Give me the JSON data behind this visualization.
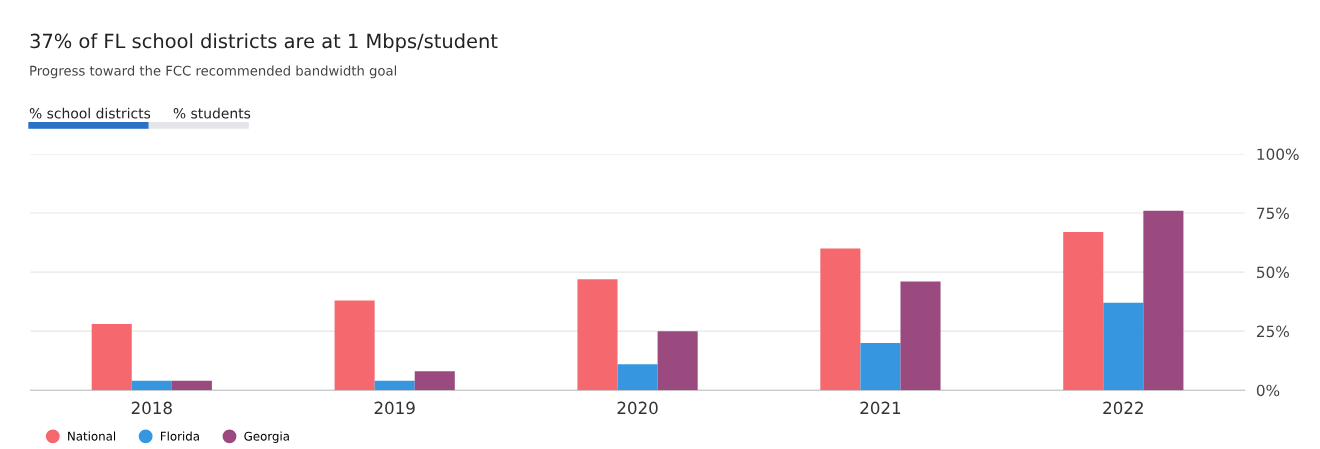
{
  "chart_data": {
    "type": "bar",
    "title": "37% of FL school districts are at 1 Mbps/student",
    "subtitle": "Progress toward the FCC recommended bandwidth goal",
    "annotations": [
      "% school districts",
      "% students"
    ],
    "categories": [
      "2018",
      "2019",
      "2020",
      "2021",
      "2022"
    ],
    "series": [
      {
        "name": "National",
        "color": "#f4686e",
        "values": [
          28,
          38,
          47,
          60,
          67
        ]
      },
      {
        "name": "Florida",
        "color": "#3697e0",
        "values": [
          4,
          4,
          11,
          20,
          37
        ]
      },
      {
        "name": "Georgia",
        "color": "#9a4a7e",
        "values": [
          4,
          8,
          25,
          46,
          76
        ]
      }
    ],
    "ylim": [
      0,
      100
    ],
    "yticks": [
      {
        "value": 0,
        "label": "0%"
      },
      {
        "value": 25,
        "label": "25%"
      },
      {
        "value": 50,
        "label": "50%"
      },
      {
        "value": 75,
        "label": "75%"
      },
      {
        "value": 100,
        "label": "100%"
      }
    ],
    "grid": "y",
    "legend": "bottom left"
  }
}
